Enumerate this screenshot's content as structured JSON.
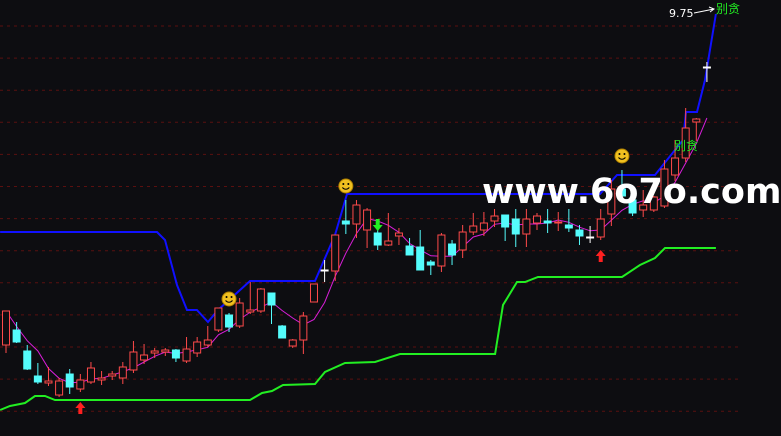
{
  "chart_data": {
    "type": "candlestick",
    "title": "",
    "grid": true,
    "colors": {
      "background": "#0d0d11",
      "up": "#ff4a4a",
      "down": "#54fcfc",
      "doji": "#ffffff",
      "ma": "#d81ed8",
      "upper_band": "#1010ff",
      "lower_band": "#22ee22",
      "grid": "#5a1010"
    },
    "candles": [
      [
        6.44,
        6.78,
        6.36,
        6.78
      ],
      [
        6.59,
        6.67,
        6.46,
        6.47
      ],
      [
        6.38,
        6.44,
        6.19,
        6.2
      ],
      [
        6.13,
        6.26,
        6.05,
        6.07
      ],
      [
        6.06,
        6.22,
        6.03,
        6.08
      ],
      [
        5.94,
        6.11,
        5.92,
        6.08
      ],
      [
        6.15,
        6.2,
        5.95,
        6.02
      ],
      [
        6.0,
        6.15,
        5.97,
        6.09
      ],
      [
        6.07,
        6.27,
        6.05,
        6.21
      ],
      [
        6.09,
        6.18,
        6.04,
        6.11
      ],
      [
        6.13,
        6.18,
        6.09,
        6.15
      ],
      [
        6.11,
        6.27,
        6.05,
        6.22
      ],
      [
        6.19,
        6.48,
        6.16,
        6.37
      ],
      [
        6.29,
        6.45,
        6.25,
        6.34
      ],
      [
        6.36,
        6.41,
        6.31,
        6.38
      ],
      [
        6.37,
        6.41,
        6.33,
        6.39
      ],
      [
        6.39,
        6.4,
        6.27,
        6.31
      ],
      [
        6.28,
        6.52,
        6.26,
        6.4
      ],
      [
        6.36,
        6.52,
        6.32,
        6.47
      ],
      [
        6.44,
        6.63,
        6.42,
        6.49
      ],
      [
        6.59,
        6.81,
        6.57,
        6.81
      ],
      [
        6.74,
        6.76,
        6.57,
        6.62
      ],
      [
        6.63,
        6.91,
        6.61,
        6.86
      ],
      [
        6.77,
        7.07,
        6.75,
        6.79
      ],
      [
        6.78,
        7.01,
        6.76,
        7.0
      ],
      [
        6.96,
        6.96,
        6.65,
        6.84
      ],
      [
        6.63,
        6.64,
        6.51,
        6.51
      ],
      [
        6.43,
        6.5,
        6.41,
        6.49
      ],
      [
        6.49,
        6.77,
        6.35,
        6.73
      ],
      [
        6.87,
        7.05,
        6.87,
        7.05
      ],
      [
        7.19,
        7.29,
        7.07,
        7.19
      ],
      [
        7.18,
        7.54,
        7.08,
        7.54
      ],
      [
        7.68,
        7.89,
        7.55,
        7.65
      ],
      [
        7.65,
        7.89,
        7.51,
        7.84
      ],
      [
        7.59,
        7.81,
        7.41,
        7.79
      ],
      [
        7.56,
        7.7,
        7.39,
        7.44
      ],
      [
        7.44,
        7.76,
        7.43,
        7.48
      ],
      [
        7.53,
        7.61,
        7.44,
        7.56
      ],
      [
        7.43,
        7.51,
        7.34,
        7.34
      ],
      [
        7.42,
        7.59,
        7.19,
        7.19
      ],
      [
        7.27,
        7.29,
        7.14,
        7.24
      ],
      [
        7.23,
        7.56,
        7.17,
        7.54
      ],
      [
        7.45,
        7.49,
        7.24,
        7.34
      ],
      [
        7.39,
        7.64,
        7.31,
        7.57
      ],
      [
        7.57,
        7.76,
        7.54,
        7.63
      ],
      [
        7.59,
        7.77,
        7.53,
        7.66
      ],
      [
        7.68,
        7.8,
        7.62,
        7.73
      ],
      [
        7.74,
        7.74,
        7.48,
        7.62
      ],
      [
        7.7,
        7.8,
        7.42,
        7.55
      ],
      [
        7.55,
        7.8,
        7.42,
        7.7
      ],
      [
        7.66,
        7.76,
        7.59,
        7.73
      ],
      [
        7.68,
        7.8,
        7.56,
        7.66
      ],
      [
        7.66,
        7.77,
        7.58,
        7.67
      ],
      [
        7.64,
        7.8,
        7.57,
        7.61
      ],
      [
        7.59,
        7.64,
        7.44,
        7.53
      ],
      [
        7.52,
        7.63,
        7.46,
        7.52
      ],
      [
        7.52,
        7.8,
        7.49,
        7.7
      ],
      [
        7.75,
        8.09,
        7.63,
        8.0
      ],
      [
        8.0,
        8.19,
        7.89,
        7.93
      ],
      [
        7.89,
        7.96,
        7.73,
        7.76
      ],
      [
        7.79,
        7.99,
        7.72,
        7.84
      ],
      [
        7.79,
        7.93,
        7.77,
        7.92
      ],
      [
        7.83,
        8.29,
        7.81,
        8.2
      ],
      [
        8.14,
        8.49,
        8.08,
        8.31
      ],
      [
        8.31,
        8.81,
        8.27,
        8.61
      ],
      [
        8.67,
        8.71,
        8.48,
        8.7
      ],
      [
        9.22,
        9.27,
        9.07,
        9.22
      ]
    ],
    "candle_fields": [
      "open",
      "high",
      "low",
      "close"
    ],
    "upper_band": [
      [
        -0.56,
        7.57
      ],
      [
        14.22,
        7.57
      ],
      [
        14.97,
        7.49
      ],
      [
        16.1,
        7.04
      ],
      [
        17.04,
        6.79
      ],
      [
        17.98,
        6.79
      ],
      [
        19.02,
        6.67
      ],
      [
        19.96,
        6.79
      ],
      [
        22.98,
        7.08
      ],
      [
        29.1,
        7.08
      ],
      [
        30.98,
        7.54
      ],
      [
        32.11,
        7.95
      ],
      [
        50.28,
        7.95
      ],
      [
        55.93,
        7.95
      ],
      [
        57.53,
        8.14
      ],
      [
        61.11,
        8.14
      ],
      [
        63.75,
        8.49
      ],
      [
        64.03,
        8.77
      ],
      [
        65.07,
        8.77
      ],
      [
        65.82,
        9.09
      ],
      [
        66.85,
        9.75
      ]
    ],
    "lower_band": [
      [
        -0.56,
        5.79
      ],
      [
        0.38,
        5.83
      ],
      [
        1.79,
        5.86
      ],
      [
        2.73,
        5.93
      ],
      [
        3.67,
        5.93
      ],
      [
        4.61,
        5.89
      ],
      [
        22.98,
        5.89
      ],
      [
        24.11,
        5.96
      ],
      [
        25.05,
        5.98
      ],
      [
        26.08,
        6.04
      ],
      [
        29.1,
        6.05
      ],
      [
        30.04,
        6.17
      ],
      [
        31.92,
        6.26
      ],
      [
        34.75,
        6.27
      ],
      [
        37.1,
        6.35
      ],
      [
        46.05,
        6.35
      ],
      [
        46.8,
        6.84
      ],
      [
        48.12,
        7.07
      ],
      [
        48.87,
        7.07
      ],
      [
        50.09,
        7.12
      ],
      [
        58.0,
        7.12
      ],
      [
        59.7,
        7.24
      ],
      [
        61.11,
        7.31
      ],
      [
        62.05,
        7.41
      ],
      [
        66.85,
        7.41
      ]
    ],
    "markers": {
      "smiley": [
        21,
        32,
        58
      ],
      "buy_arrow_up": [
        7,
        56
      ],
      "sell_arrow_down": [
        35
      ]
    },
    "annotations": {
      "max_price": "9.75",
      "greed_warning": "别贪"
    }
  },
  "watermark": "www.6o7o.com"
}
